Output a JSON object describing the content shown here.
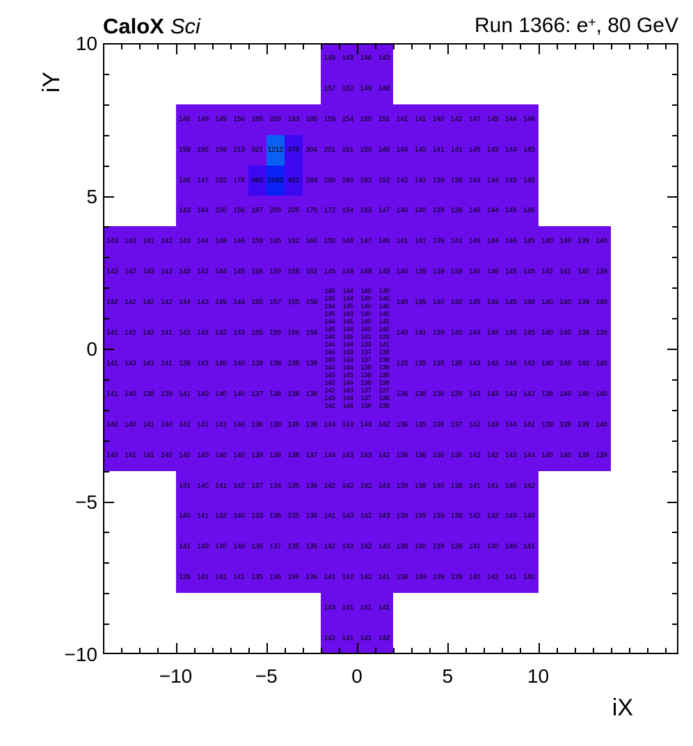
{
  "header": {
    "brand_bold": "CaloX",
    "brand_italic": "Sci",
    "run_prefix": "Run 1366: e",
    "run_sup": "+",
    "run_suffix": ", 80 GeV"
  },
  "axes": {
    "x_title": "iX",
    "y_title": "iY",
    "x_major_ticks": [
      {
        "v": -10,
        "label": "−10"
      },
      {
        "v": -5,
        "label": "−5"
      },
      {
        "v": 0,
        "label": "0"
      },
      {
        "v": 5,
        "label": "5"
      },
      {
        "v": 10,
        "label": "10"
      }
    ],
    "y_major_ticks": [
      {
        "v": 10,
        "label": "10"
      },
      {
        "v": 5,
        "label": "5"
      },
      {
        "v": 0,
        "label": "0"
      },
      {
        "v": -5,
        "label": "−5"
      },
      {
        "v": -10,
        "label": "−10"
      }
    ],
    "x_minor_range": [
      -13,
      17
    ],
    "y_minor_range": [
      -9,
      9
    ]
  },
  "chart_data": {
    "type": "heatmap",
    "title": "Run 1366: e+, 80 GeV",
    "xlabel": "iX",
    "ylabel": "iY",
    "x_range": [
      -14,
      17.7
    ],
    "y_range": [
      -10,
      10
    ],
    "palette": {
      "base": "#6a0dea",
      "mid": "#3c08f2",
      "high": "#0b1ff7",
      "peak": "#0b5ff5"
    },
    "thresholds": [
      350,
      600,
      1150
    ],
    "regions": [
      {
        "x0": -2,
        "x1": 2,
        "y0": 8,
        "y1": 10
      },
      {
        "x0": -10,
        "x1": 10,
        "y0": 4,
        "y1": 8
      },
      {
        "x0": -14,
        "x1": 14,
        "y0": -4,
        "y1": 4
      },
      {
        "x0": -10,
        "x1": 10,
        "y0": -8,
        "y1": -4
      },
      {
        "x0": -2,
        "x1": 2,
        "y0": -10,
        "y1": -8
      }
    ],
    "coarse_rows": [
      {
        "y": 10,
        "x0": -2,
        "v": [
          149,
          149,
          146,
          143
        ]
      },
      {
        "y": 9,
        "x0": -2,
        "v": [
          157,
          152,
          149,
          148
        ]
      },
      {
        "y": 8,
        "x0": -10,
        "v": [
          146,
          149,
          149,
          156,
          185,
          203,
          193,
          185,
          159,
          154,
          150,
          151,
          141,
          141,
          140,
          142,
          147,
          145,
          144,
          146
        ]
      },
      {
        "y": 7,
        "x0": -10,
        "v": [
          159,
          150,
          156,
          213,
          321,
          1212,
          476,
          304,
          201,
          161,
          150,
          148,
          144,
          140,
          141,
          141,
          145,
          145,
          144,
          145
        ]
      },
      {
        "y": 6,
        "x0": -10,
        "v": [
          146,
          147,
          152,
          178,
          480,
          1093,
          401,
          284,
          200,
          160,
          183,
          152,
          142,
          141,
          139,
          139,
          144,
          144,
          145,
          145
        ]
      },
      {
        "y": 5,
        "x0": -10,
        "v": [
          143,
          144,
          150,
          156,
          187,
          205,
          205,
          170,
          172,
          154,
          153,
          147,
          140,
          140,
          139,
          138,
          146,
          144,
          145,
          146
        ]
      },
      {
        "y": 4,
        "x0": -14,
        "v": [
          143,
          143,
          141,
          142,
          143,
          144,
          148,
          146,
          159,
          165,
          162,
          160,
          150,
          148,
          147,
          146,
          141,
          141,
          139,
          141,
          146,
          144,
          146,
          145,
          140,
          140,
          139,
          140
        ]
      },
      {
        "y": 3,
        "x0": -14,
        "v": [
          143,
          142,
          143,
          143,
          143,
          143,
          144,
          145,
          158,
          159,
          158,
          162,
          145,
          149,
          148,
          145,
          140,
          139,
          139,
          139,
          146,
          146,
          145,
          145,
          142,
          141,
          140,
          139
        ]
      },
      {
        "y": 2,
        "x0": -14,
        "v": [
          142,
          142,
          142,
          142,
          144,
          143,
          145,
          144,
          155,
          157,
          155,
          156
        ]
      },
      {
        "y": 2,
        "x0": 2,
        "v": [
          140,
          139,
          140,
          140,
          145,
          146,
          145,
          146,
          140,
          140,
          139,
          140
        ]
      },
      {
        "y": 1,
        "x0": -14,
        "v": [
          141,
          142,
          142,
          141,
          142,
          143,
          142,
          143,
          155,
          155,
          156,
          156
        ]
      },
      {
        "y": 1,
        "x0": 2,
        "v": [
          140,
          141,
          139,
          140,
          144,
          146,
          146,
          145,
          140,
          140,
          139,
          139
        ]
      },
      {
        "y": 0,
        "x0": -14,
        "v": [
          141,
          143,
          141,
          141,
          139,
          143,
          140,
          140,
          138,
          138,
          138,
          139
        ]
      },
      {
        "y": 0,
        "x0": 2,
        "v": [
          135,
          135,
          136,
          135,
          143,
          142,
          144,
          143,
          140,
          140,
          140,
          140
        ]
      },
      {
        "y": -1,
        "x0": -14,
        "v": [
          141,
          140,
          138,
          139,
          141,
          140,
          140,
          140,
          137,
          138,
          138,
          138
        ]
      },
      {
        "y": -1,
        "x0": 2,
        "v": [
          136,
          138,
          136,
          135,
          143,
          143,
          143,
          142,
          138,
          140,
          140,
          140
        ]
      },
      {
        "y": -2,
        "x0": -14,
        "v": [
          140,
          140,
          141,
          140,
          141,
          141,
          141,
          140,
          138,
          138,
          136,
          138,
          143,
          143,
          143,
          142,
          136,
          135,
          136,
          137,
          142,
          143,
          144,
          142,
          139,
          139,
          139,
          140
        ]
      },
      {
        "y": -3,
        "x0": -14,
        "v": [
          140,
          141,
          141,
          140,
          140,
          140,
          140,
          140,
          138,
          138,
          138,
          137,
          144,
          143,
          143,
          142,
          136,
          136,
          136,
          136,
          143,
          142,
          143,
          144,
          140,
          140,
          139,
          139
        ]
      },
      {
        "y": -4,
        "x0": -10,
        "v": [
          141,
          140,
          141,
          142,
          137,
          134,
          135,
          136,
          142,
          142,
          142,
          143,
          139,
          138,
          140,
          138,
          141,
          141,
          140,
          142
        ]
      },
      {
        "y": -5,
        "x0": -10,
        "v": [
          140,
          141,
          142,
          140,
          133,
          136,
          135,
          136,
          141,
          143,
          142,
          143,
          139,
          139,
          139,
          139,
          142,
          142,
          143,
          140
        ]
      },
      {
        "y": -6,
        "x0": -10,
        "v": [
          141,
          140,
          140,
          140,
          136,
          137,
          135,
          135,
          142,
          143,
          142,
          143,
          138,
          140,
          139,
          139,
          141,
          140,
          140,
          141
        ]
      },
      {
        "y": -7,
        "x0": -10,
        "v": [
          139,
          141,
          141,
          141,
          135,
          136,
          136,
          136,
          141,
          142,
          142,
          141,
          138,
          139,
          139,
          139,
          140,
          142,
          141,
          140
        ]
      },
      {
        "y": -8,
        "x0": -2,
        "v": [
          143,
          141,
          141,
          141
        ]
      },
      {
        "y": -9,
        "x0": -2,
        "v": [
          142,
          141,
          141,
          142
        ]
      }
    ],
    "fine_block": {
      "x0": -2,
      "y_top": 2,
      "dx": 1,
      "dy": 0.25,
      "rows": [
        [
          145,
          144,
          140,
          140
        ],
        [
          145,
          144,
          140,
          140
        ],
        [
          144,
          145,
          140,
          140
        ],
        [
          145,
          143,
          140,
          140
        ],
        [
          144,
          145,
          140,
          141
        ],
        [
          145,
          144,
          140,
          140
        ],
        [
          144,
          145,
          141,
          139
        ],
        [
          144,
          144,
          139,
          141
        ],
        [
          144,
          143,
          137,
          138
        ],
        [
          143,
          143,
          137,
          138
        ],
        [
          144,
          144,
          138,
          138
        ],
        [
          143,
          143,
          138,
          138
        ],
        [
          142,
          144,
          138,
          138
        ],
        [
          142,
          143,
          137,
          137
        ],
        [
          143,
          144,
          137,
          138
        ],
        [
          142,
          144,
          138,
          138
        ]
      ]
    }
  }
}
